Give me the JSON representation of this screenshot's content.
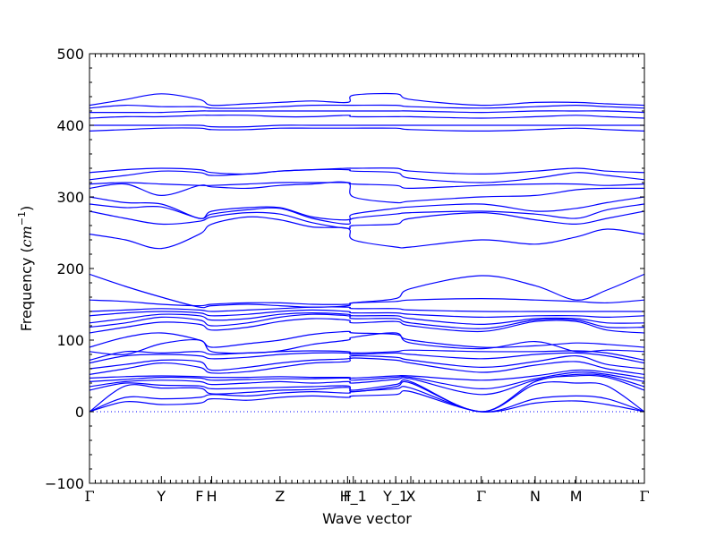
{
  "chart_data": {
    "type": "line",
    "title": "",
    "xlabel": "Wave vector",
    "ylabel": "Frequency (cm⁻¹)",
    "ylabel_parts": {
      "text": "Frequency (",
      "unit": "cm",
      "exp": "−1",
      "close": ")"
    },
    "ylim": [
      -100,
      500
    ],
    "yticks": [
      -100,
      0,
      100,
      200,
      300,
      400,
      500
    ],
    "xlim": [
      0,
      7.72
    ],
    "grid": false,
    "legend": "none",
    "line_color": "#0000ff",
    "zero_line": {
      "y": 0,
      "style": "dotted"
    },
    "special_points": [
      {
        "label": "Γ",
        "x": 0.0
      },
      {
        "label": "Y",
        "x": 1.0
      },
      {
        "label": "F",
        "x": 1.53
      },
      {
        "label": "H",
        "x": 1.7
      },
      {
        "label": "Z",
        "x": 2.65
      },
      {
        "label": "F",
        "x": 3.59
      },
      {
        "label": "H_1",
        "x": 3.67
      },
      {
        "label": "Y_1",
        "x": 4.26
      },
      {
        "label": "X",
        "x": 4.47
      },
      {
        "label": "Γ",
        "x": 5.45
      },
      {
        "label": "N",
        "x": 6.2
      },
      {
        "label": "M",
        "x": 6.77
      },
      {
        "label": "Γ",
        "x": 7.72
      }
    ],
    "series": [
      {
        "values": [
          0,
          14,
          10,
          12,
          18,
          16,
          20,
          22,
          20,
          22,
          24,
          28,
          0,
          12,
          15,
          10,
          0
        ]
      },
      {
        "values": [
          0,
          20,
          18,
          20,
          24,
          22,
          26,
          28,
          26,
          28,
          32,
          33,
          0,
          18,
          22,
          18,
          0
        ]
      },
      {
        "values": [
          0,
          36,
          33,
          33,
          25,
          27,
          30,
          31,
          34,
          28,
          35,
          40,
          0,
          38,
          40,
          36,
          0
        ]
      },
      {
        "values": [
          30,
          40,
          37,
          36,
          32,
          33,
          34,
          35,
          36,
          30,
          38,
          42,
          0,
          42,
          50,
          48,
          30
        ]
      },
      {
        "values": [
          35,
          42,
          44,
          42,
          38,
          40,
          42,
          40,
          42,
          40,
          45,
          46,
          24,
          44,
          52,
          50,
          35
        ]
      },
      {
        "values": [
          42,
          45,
          48,
          47,
          44,
          45,
          46,
          46,
          47,
          44,
          48,
          48,
          32,
          46,
          55,
          52,
          42
        ]
      },
      {
        "values": [
          47,
          49,
          50,
          49,
          48,
          48,
          49,
          48,
          48,
          47,
          50,
          50,
          44,
          50,
          58,
          55,
          47
        ]
      },
      {
        "values": [
          52,
          60,
          68,
          62,
          54,
          56,
          62,
          68,
          70,
          75,
          72,
          68,
          55,
          65,
          70,
          60,
          52
        ]
      },
      {
        "values": [
          60,
          66,
          72,
          70,
          58,
          62,
          68,
          72,
          74,
          78,
          76,
          72,
          62,
          70,
          78,
          66,
          60
        ]
      },
      {
        "values": [
          68,
          78,
          80,
          78,
          74,
          76,
          80,
          82,
          82,
          80,
          82,
          80,
          74,
          80,
          82,
          78,
          68
        ]
      },
      {
        "values": [
          72,
          84,
          82,
          84,
          80,
          82,
          84,
          85,
          84,
          82,
          84,
          86,
          84,
          84,
          85,
          82,
          72
        ]
      },
      {
        "values": [
          84,
          80,
          95,
          100,
          84,
          82,
          85,
          94,
          100,
          104,
          110,
          96,
          88,
          98,
          84,
          86,
          84
        ]
      },
      {
        "values": [
          90,
          104,
          110,
          100,
          90,
          95,
          100,
          108,
          112,
          110,
          108,
          100,
          90,
          92,
          96,
          94,
          90
        ]
      },
      {
        "values": [
          110,
          118,
          125,
          122,
          114,
          118,
          126,
          130,
          128,
          124,
          126,
          120,
          112,
          126,
          126,
          114,
          110
        ]
      },
      {
        "values": [
          118,
          124,
          132,
          128,
          120,
          124,
          132,
          136,
          134,
          130,
          130,
          124,
          116,
          128,
          128,
          118,
          118
        ]
      },
      {
        "values": [
          124,
          130,
          136,
          134,
          128,
          130,
          136,
          138,
          136,
          134,
          134,
          130,
          122,
          130,
          130,
          124,
          124
        ]
      },
      {
        "values": [
          134,
          138,
          140,
          138,
          134,
          136,
          140,
          142,
          140,
          138,
          138,
          136,
          132,
          134,
          134,
          132,
          134
        ]
      },
      {
        "values": [
          140,
          142,
          144,
          142,
          140,
          142,
          144,
          146,
          146,
          144,
          144,
          142,
          140,
          140,
          140,
          140,
          140
        ]
      },
      {
        "values": [
          156,
          154,
          150,
          148,
          150,
          152,
          152,
          150,
          150,
          152,
          154,
          156,
          158,
          156,
          154,
          152,
          156
        ]
      },
      {
        "values": [
          192,
          175,
          160,
          146,
          148,
          150,
          148,
          146,
          148,
          152,
          158,
          172,
          190,
          176,
          156,
          170,
          192
        ]
      },
      {
        "values": [
          248,
          240,
          228,
          248,
          262,
          272,
          268,
          258,
          256,
          240,
          230,
          230,
          240,
          234,
          244,
          255,
          248
        ]
      },
      {
        "values": [
          280,
          270,
          262,
          266,
          272,
          278,
          276,
          264,
          256,
          260,
          262,
          270,
          278,
          268,
          262,
          270,
          280
        ]
      },
      {
        "values": [
          290,
          285,
          286,
          270,
          276,
          282,
          284,
          270,
          262,
          270,
          276,
          278,
          280,
          276,
          270,
          282,
          290
        ]
      },
      {
        "values": [
          300,
          292,
          290,
          270,
          280,
          285,
          285,
          272,
          268,
          276,
          284,
          286,
          290,
          280,
          284,
          292,
          300
        ]
      },
      {
        "values": [
          312,
          318,
          302,
          316,
          314,
          312,
          316,
          318,
          320,
          300,
          292,
          294,
          300,
          302,
          310,
          312,
          312
        ]
      },
      {
        "values": [
          318,
          320,
          318,
          316,
          316,
          318,
          320,
          320,
          320,
          318,
          316,
          312,
          316,
          318,
          318,
          316,
          318
        ]
      },
      {
        "values": [
          324,
          330,
          336,
          334,
          330,
          332,
          336,
          338,
          338,
          336,
          334,
          326,
          320,
          326,
          334,
          330,
          324
        ]
      },
      {
        "values": [
          334,
          338,
          340,
          338,
          334,
          332,
          336,
          338,
          340,
          340,
          340,
          336,
          332,
          336,
          340,
          336,
          334
        ]
      },
      {
        "values": [
          392,
          394,
          396,
          396,
          394,
          394,
          396,
          396,
          396,
          396,
          396,
          394,
          392,
          394,
          396,
          394,
          392
        ]
      },
      {
        "values": [
          400,
          400,
          400,
          400,
          398,
          398,
          400,
          400,
          400,
          400,
          400,
          400,
          400,
          400,
          400,
          400,
          400
        ]
      },
      {
        "values": [
          410,
          412,
          412,
          414,
          414,
          414,
          412,
          412,
          414,
          412,
          412,
          412,
          410,
          412,
          414,
          412,
          410
        ]
      },
      {
        "values": [
          418,
          418,
          418,
          420,
          420,
          420,
          420,
          420,
          420,
          420,
          420,
          420,
          418,
          420,
          420,
          420,
          418
        ]
      },
      {
        "values": [
          424,
          428,
          426,
          426,
          424,
          424,
          426,
          428,
          428,
          428,
          428,
          426,
          424,
          426,
          428,
          426,
          424
        ]
      },
      {
        "values": [
          428,
          436,
          444,
          436,
          428,
          430,
          432,
          434,
          432,
          442,
          444,
          436,
          428,
          432,
          432,
          430,
          428
        ]
      }
    ],
    "series_x": [
      0,
      0.5,
      1.0,
      1.53,
      1.7,
      2.2,
      2.65,
      3.1,
      3.59,
      3.67,
      4.26,
      4.47,
      5.45,
      6.2,
      6.77,
      7.2,
      7.72
    ]
  }
}
